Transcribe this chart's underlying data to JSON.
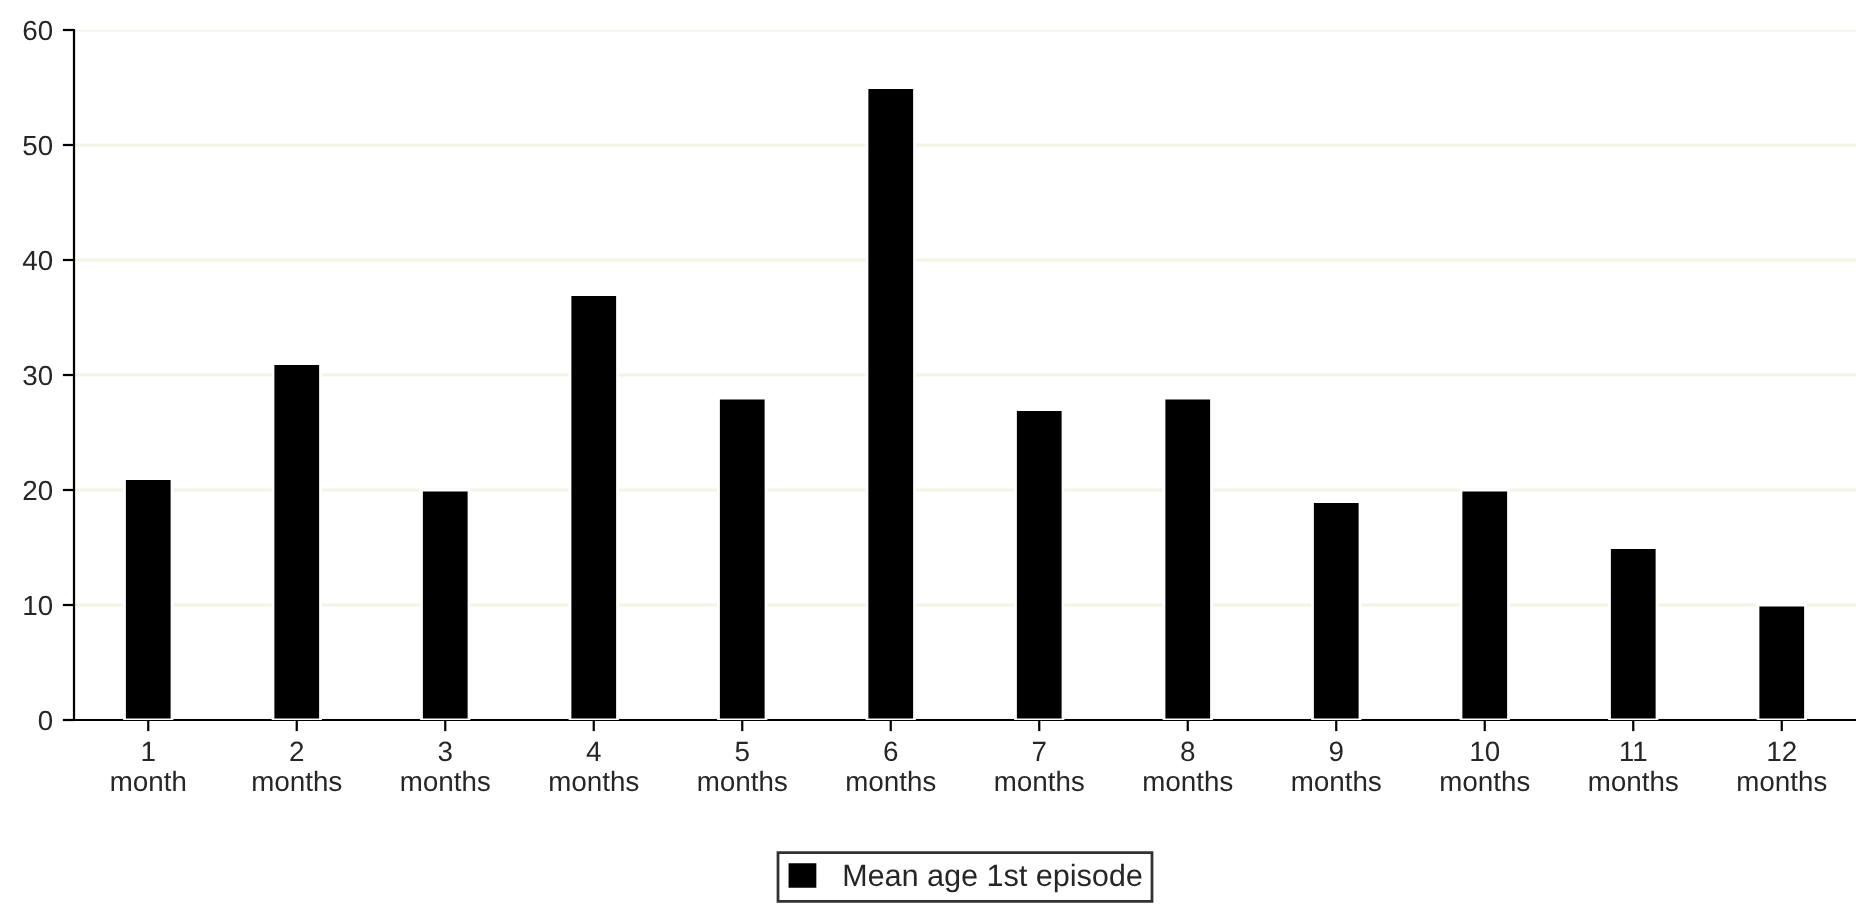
{
  "chart_data": {
    "type": "bar",
    "categories": [
      "1\nmonth",
      "2\nmonths",
      "3\nmonths",
      "4\nmonths",
      "5\nmonths",
      "6\nmonths",
      "7\nmonths",
      "8\nmonths",
      "9\nmonths",
      "10\nmonths",
      "11\nmonths",
      "12\nmonths"
    ],
    "series": [
      {
        "name": "Mean age 1st episode",
        "color": "#000000",
        "values": [
          21,
          31,
          20,
          37,
          28,
          55,
          27,
          28,
          19,
          20,
          15,
          10
        ]
      }
    ],
    "ylim": [
      0,
      60
    ],
    "yticks": [
      0,
      10,
      20,
      30,
      40,
      50,
      60
    ],
    "grid": "y",
    "legend": "bottom"
  }
}
